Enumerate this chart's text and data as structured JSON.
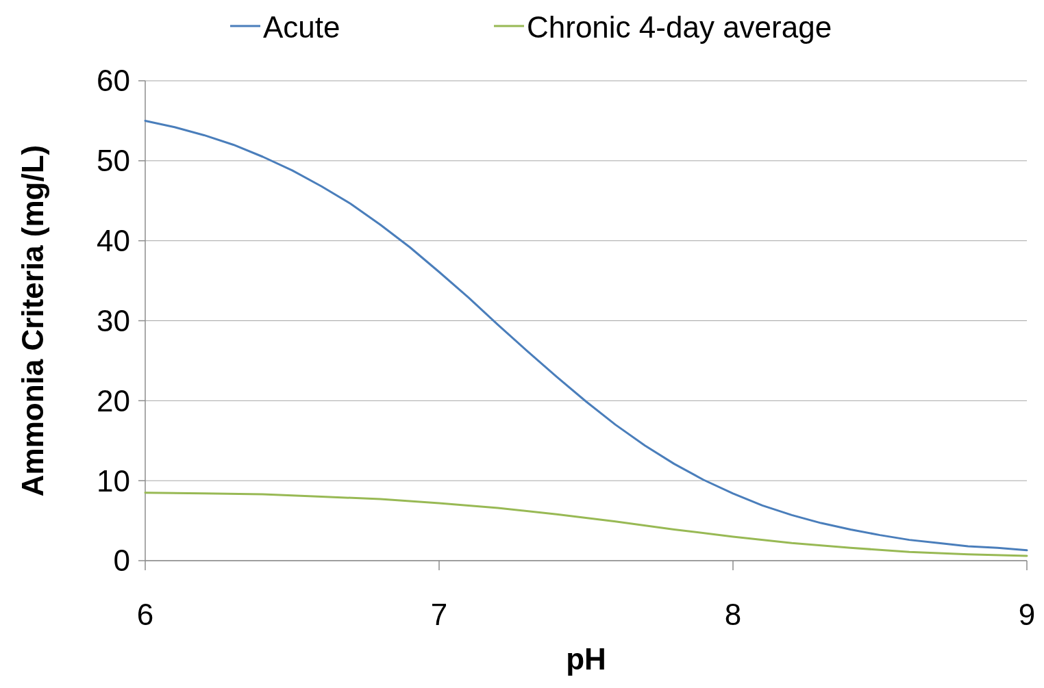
{
  "chart_data": {
    "type": "line",
    "xlabel": "pH",
    "ylabel": "Ammonia Criteria (mg/L)",
    "x": [
      6.0,
      6.1,
      6.2,
      6.3,
      6.4,
      6.5,
      6.6,
      6.7,
      6.8,
      6.9,
      7.0,
      7.1,
      7.2,
      7.3,
      7.4,
      7.5,
      7.6,
      7.7,
      7.8,
      7.9,
      8.0,
      8.1,
      8.2,
      8.3,
      8.4,
      8.5,
      8.6,
      8.7,
      8.8,
      8.9,
      9.0
    ],
    "series": [
      {
        "name": "Acute",
        "color": "#4a7ebb",
        "values": [
          55.0,
          54.2,
          53.2,
          52.0,
          50.5,
          48.8,
          46.8,
          44.6,
          42.0,
          39.2,
          36.1,
          32.9,
          29.5,
          26.2,
          23.0,
          19.9,
          17.0,
          14.4,
          12.1,
          10.1,
          8.4,
          6.9,
          5.7,
          4.7,
          3.9,
          3.2,
          2.6,
          2.2,
          1.8,
          1.6,
          1.3
        ]
      },
      {
        "name": "Chronic 4-day average",
        "color": "#98b954",
        "x": [
          6.0,
          6.2,
          6.4,
          6.6,
          6.8,
          7.0,
          7.2,
          7.4,
          7.6,
          7.8,
          8.0,
          8.2,
          8.4,
          8.6,
          8.8,
          9.0
        ],
        "values": [
          8.5,
          8.4,
          8.3,
          8.0,
          7.7,
          7.2,
          6.6,
          5.8,
          4.9,
          3.9,
          3.0,
          2.2,
          1.6,
          1.1,
          0.8,
          0.6
        ]
      }
    ],
    "xlim": [
      6,
      9
    ],
    "xticks": [
      6,
      7,
      8,
      9
    ],
    "ylim": [
      0,
      60
    ],
    "yticks": [
      0,
      10,
      20,
      30,
      40,
      50,
      60
    ],
    "grid": "y",
    "legend": "top",
    "marker": "none",
    "line_style": "solid"
  }
}
